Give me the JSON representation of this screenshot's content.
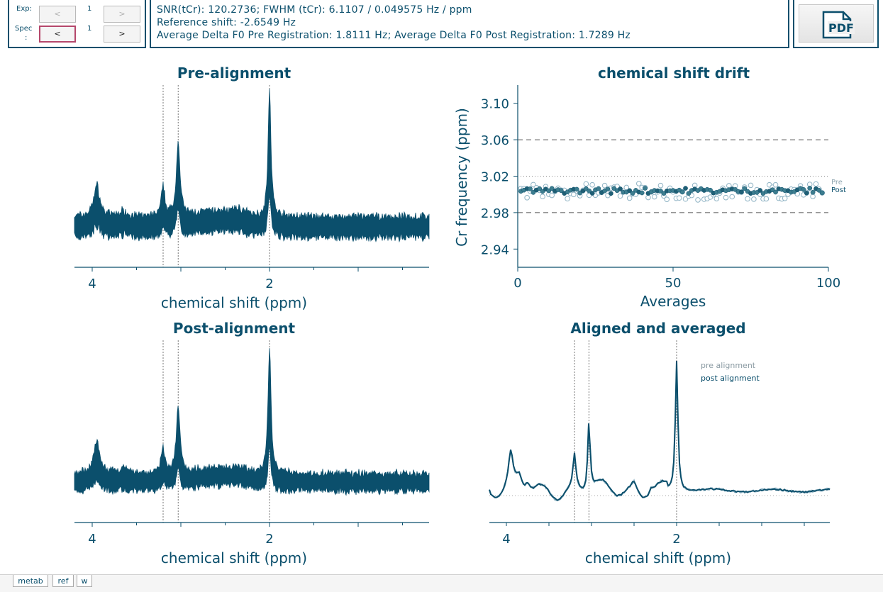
{
  "controls": {
    "exp_label": "Exp:",
    "exp_value": "1",
    "exp_prev": "<",
    "exp_next": ">",
    "spec_label": "Spec",
    "spec_label2": ":",
    "spec_value": "1",
    "spec_prev": "<",
    "spec_next": ">"
  },
  "info": {
    "line1": "SNR(tCr): 120.2736; FWHM (tCr): 6.1107 / 0.049575 Hz / ppm",
    "line2": "Reference shift: -2.6549 Hz",
    "line3": "Average Delta F0 Pre Registration: 1.8111 Hz; Average Delta F0 Post Registration: 1.7289 Hz"
  },
  "pdf_button": {
    "label": "PDF",
    "icon": "pdf-file-icon"
  },
  "colors": {
    "accent": "#0b4f6c",
    "pre": "#8fb3c4",
    "post": "#0b4f6c"
  },
  "tabs": [
    "metab",
    "ref",
    "w"
  ],
  "chart_data": [
    {
      "type": "line",
      "title": "Pre-alignment",
      "xlabel": "chemical shift (ppm)",
      "x_ticks": [
        "4",
        "2"
      ],
      "x_reversed": true,
      "xlim": [
        4.2,
        0.2
      ],
      "reference_lines_ppm": [
        3.2,
        3.03,
        2.0
      ],
      "peaks_ppm": [
        3.95,
        3.2,
        3.03,
        2.0
      ],
      "series": [
        {
          "values": []
        }
      ]
    },
    {
      "type": "scatter",
      "title": "chemical shift drift",
      "xlabel": "Averages",
      "ylabel": "Cr frequency (ppm)",
      "x_ticks": [
        "0",
        "50",
        "100"
      ],
      "y_ticks": [
        "3.10",
        "3.06",
        "3.02",
        "2.98",
        "2.94"
      ],
      "xlim": [
        0,
        100
      ],
      "ylim": [
        2.92,
        3.12
      ],
      "dashed_lines": [
        3.06,
        2.98
      ],
      "dotted_line": 3.02,
      "legend": [
        "Pre",
        "Post"
      ],
      "pre_mean": 3.003,
      "post_mean": 3.004
    },
    {
      "type": "line",
      "title": "Post-alignment",
      "xlabel": "chemical shift (ppm)",
      "x_ticks": [
        "4",
        "2"
      ],
      "x_reversed": true,
      "xlim": [
        4.2,
        0.2
      ],
      "reference_lines_ppm": [
        3.2,
        3.03,
        2.0
      ],
      "peaks_ppm": [
        3.95,
        3.2,
        3.03,
        2.0
      ],
      "series": [
        {
          "values": []
        }
      ]
    },
    {
      "type": "line",
      "title": "Aligned and averaged",
      "xlabel": "chemical shift (ppm)",
      "x_ticks": [
        "4",
        "2"
      ],
      "x_reversed": true,
      "xlim": [
        4.2,
        0.2
      ],
      "reference_lines_ppm": [
        3.2,
        3.03,
        2.0
      ],
      "legend": [
        "pre alignment",
        "post alignment"
      ],
      "peaks_ppm": [
        3.95,
        3.2,
        3.03,
        2.0
      ]
    }
  ]
}
